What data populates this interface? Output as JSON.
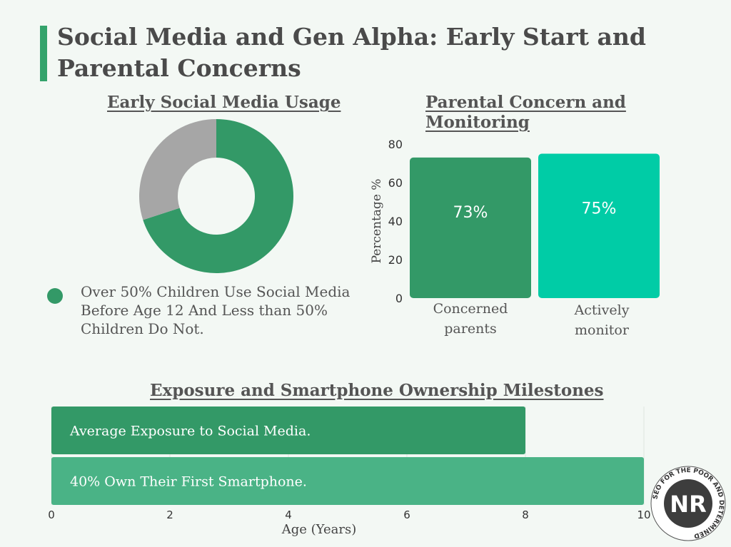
{
  "title": "Social Media and Gen Alpha: Early Start and Parental Concerns",
  "colors": {
    "accent": "#34a36b",
    "green_dark": "#339967",
    "green_light": "#4ab386",
    "teal": "#00cca6",
    "gray": "#a6a6a6"
  },
  "logo": {
    "initials": "NR",
    "tagline": "SEO FOR THE POOR AND DETERMINED"
  },
  "chart_data": [
    {
      "type": "pie",
      "title": "Early Social Media Usage",
      "labels": [
        "Use social media before age 12",
        "Do not"
      ],
      "values": [
        70,
        30
      ],
      "colors": [
        "#339967",
        "#a6a6a6"
      ],
      "legend": [
        "Over 50% Children Use Social Media Before Age 12 And Less than 50% Children Do Not."
      ]
    },
    {
      "type": "bar",
      "title": "Parental Concern and Monitoring",
      "categories": [
        "Concerned parents",
        "Actively monitor"
      ],
      "values": [
        73,
        75
      ],
      "data_labels": [
        "73%",
        "75%"
      ],
      "colors": [
        "#339967",
        "#00cca6"
      ],
      "ylabel": "Percentage  %",
      "ylim": [
        0,
        80
      ],
      "yticks": [
        0,
        20,
        40,
        60,
        80
      ]
    },
    {
      "type": "bar",
      "orientation": "horizontal",
      "title": "Exposure and Smartphone Ownership Milestones",
      "categories": [
        "Average Exposure to Social Media.",
        "40% Own Their First Smartphone."
      ],
      "values": [
        8,
        10
      ],
      "colors": [
        "#339967",
        "#4ab386"
      ],
      "xlabel": "Age (Years)",
      "xlim": [
        0,
        10
      ],
      "xticks": [
        0,
        2,
        4,
        6,
        8,
        10
      ]
    }
  ]
}
